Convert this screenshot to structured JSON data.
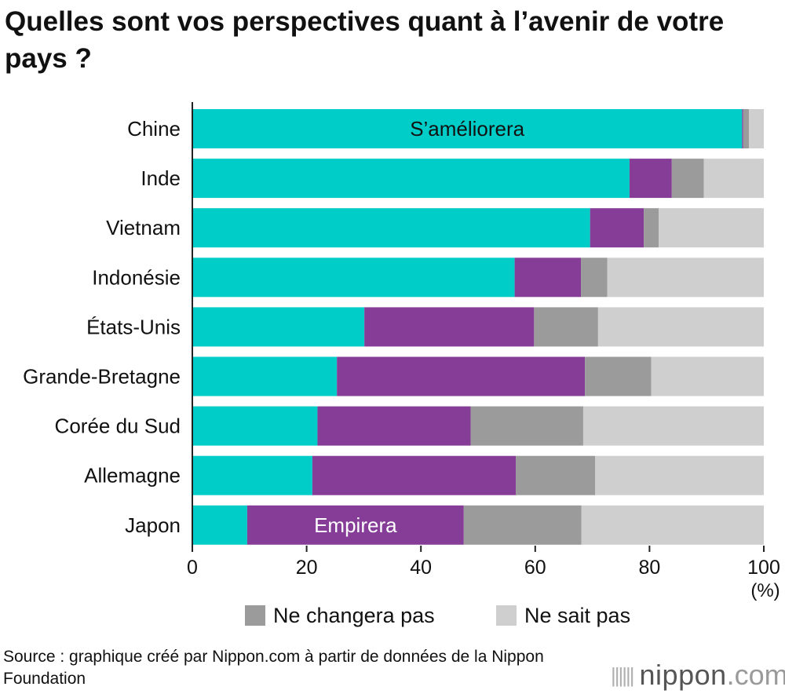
{
  "title": "Quelles sont vos perspectives quant à l’avenir de votre pays ?",
  "unit_label": "(%)",
  "source": "Source : graphique créé par Nippon.com à partir de données de la Nippon Foundation",
  "logo": {
    "brand": "nippon",
    "tld": ".com"
  },
  "colors": {
    "improve": "#00cdc8",
    "worse": "#853d97",
    "nochange": "#9b9b9b",
    "dontknow": "#cfcfcf"
  },
  "legend": [
    {
      "key": "nochange",
      "label": "Ne changera pas"
    },
    {
      "key": "dontknow",
      "label": "Ne sait pas"
    }
  ],
  "chart_data": {
    "type": "bar",
    "orientation": "horizontal",
    "stacked": true,
    "title": "Quelles sont vos perspectives quant à l’avenir de votre pays ?",
    "categories": [
      "Chine",
      "Inde",
      "Vietnam",
      "Indonésie",
      "États-Unis",
      "Grande-Bretagne",
      "Corée du Sud",
      "Allemagne",
      "Japon"
    ],
    "series": [
      {
        "key": "improve",
        "name": "S’améliorera",
        "values": [
          96.2,
          76.5,
          69.6,
          56.4,
          30.1,
          25.3,
          21.9,
          21.0,
          9.6
        ]
      },
      {
        "key": "worse",
        "name": "Empirera",
        "values": [
          0.2,
          7.4,
          9.4,
          11.6,
          29.7,
          43.4,
          26.8,
          35.6,
          37.9
        ]
      },
      {
        "key": "nochange",
        "name": "Ne changera pas",
        "values": [
          1.0,
          5.6,
          2.6,
          4.6,
          11.2,
          11.6,
          19.7,
          13.9,
          20.6
        ]
      },
      {
        "key": "dontknow",
        "name": "Ne sait pas",
        "values": [
          2.6,
          10.5,
          18.4,
          27.4,
          29.0,
          19.7,
          31.6,
          29.5,
          31.9
        ]
      }
    ],
    "inline_labels": [
      {
        "series": "improve",
        "category": "Chine",
        "text": "S’améliorera"
      },
      {
        "series": "worse",
        "category": "Japon",
        "text": "Empirera"
      }
    ],
    "xlim": [
      0,
      100
    ],
    "xticks": [
      0,
      20,
      40,
      60,
      80,
      100
    ],
    "xlabel": "(%)",
    "grid": false,
    "legend_position": "bottom"
  }
}
